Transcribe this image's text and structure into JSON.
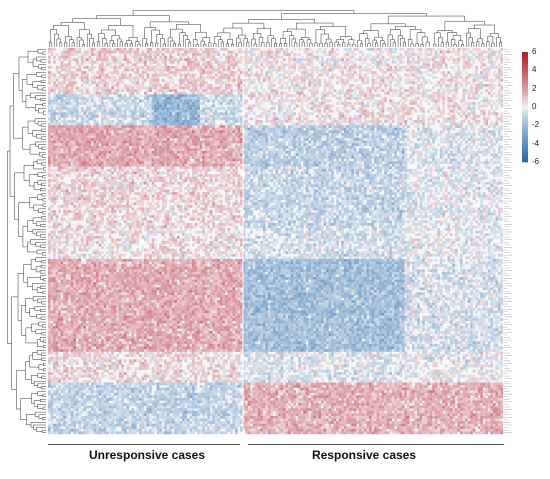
{
  "chart_data": {
    "type": "heatmap",
    "groups": [
      {
        "name": "Unresponsive cases"
      },
      {
        "name": "Responsive cases"
      }
    ],
    "colorbar": {
      "min": -6,
      "max": 6,
      "ticks": [
        "6",
        "4",
        "2",
        "0",
        "-2",
        "-4",
        "-6"
      ],
      "colors": {
        "high": "#b2182b",
        "mid": "#f7f7f7",
        "low": "#2166ac"
      }
    },
    "dendrograms": {
      "top": true,
      "left": true
    }
  }
}
